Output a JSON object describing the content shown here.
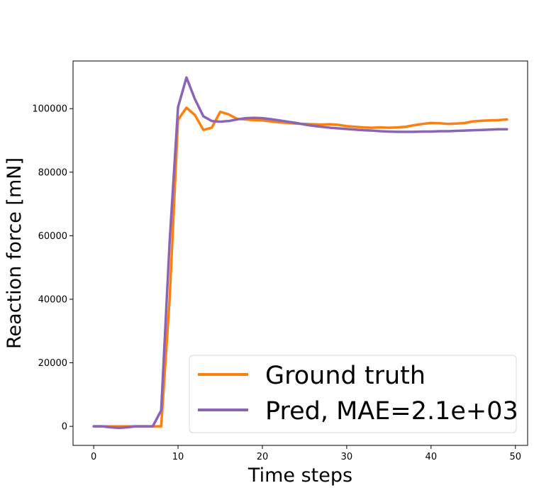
{
  "chart_data": {
    "type": "line",
    "xlabel": "Time steps",
    "ylabel": "Reaction force [mN]",
    "xlim": [
      -2.45,
      51.45
    ],
    "ylim": [
      -6000,
      115000
    ],
    "xticks": [
      0,
      10,
      20,
      30,
      40,
      50
    ],
    "yticks": [
      0,
      20000,
      40000,
      60000,
      80000,
      100000
    ],
    "legend_position": "lower right",
    "grid": false,
    "series": [
      {
        "name": "Ground truth",
        "color": "#ff7f0e",
        "x": [
          0,
          1,
          2,
          3,
          4,
          5,
          6,
          7,
          8,
          9,
          10,
          11,
          12,
          13,
          14,
          15,
          16,
          17,
          18,
          19,
          20,
          21,
          22,
          23,
          24,
          25,
          26,
          27,
          28,
          29,
          30,
          31,
          32,
          33,
          34,
          35,
          36,
          37,
          38,
          39,
          40,
          41,
          42,
          43,
          44,
          45,
          46,
          47,
          48,
          49
        ],
        "y": [
          0,
          0,
          0,
          0,
          0,
          0,
          0,
          0,
          0,
          40000,
          96500,
          100300,
          98000,
          93300,
          94000,
          99000,
          98200,
          96800,
          96600,
          96400,
          96300,
          96000,
          95700,
          95500,
          95300,
          95200,
          95100,
          95000,
          95100,
          94900,
          94500,
          94300,
          94100,
          94000,
          94100,
          94000,
          94100,
          94300,
          94800,
          95200,
          95500,
          95400,
          95200,
          95300,
          95500,
          96000,
          96200,
          96300,
          96400,
          96600
        ]
      },
      {
        "name": "Pred, MAE=2.1e+03",
        "color": "#8c64b4",
        "x": [
          0,
          1,
          2,
          3,
          4,
          5,
          6,
          7,
          8,
          9,
          10,
          11,
          12,
          13,
          14,
          15,
          16,
          17,
          18,
          19,
          20,
          21,
          22,
          23,
          24,
          25,
          26,
          27,
          28,
          29,
          30,
          31,
          32,
          33,
          34,
          35,
          36,
          37,
          38,
          39,
          40,
          41,
          42,
          43,
          44,
          45,
          46,
          47,
          48,
          49
        ],
        "y": [
          0,
          0,
          -300,
          -500,
          -300,
          0,
          0,
          0,
          5000,
          58000,
          100500,
          109800,
          103000,
          97600,
          96100,
          95900,
          96100,
          96600,
          97000,
          97100,
          97000,
          96700,
          96300,
          95900,
          95500,
          95000,
          94600,
          94300,
          94000,
          93800,
          93600,
          93400,
          93200,
          93100,
          92900,
          92800,
          92700,
          92700,
          92700,
          92800,
          92800,
          92900,
          92900,
          93000,
          93100,
          93200,
          93300,
          93400,
          93500,
          93500
        ]
      }
    ]
  }
}
